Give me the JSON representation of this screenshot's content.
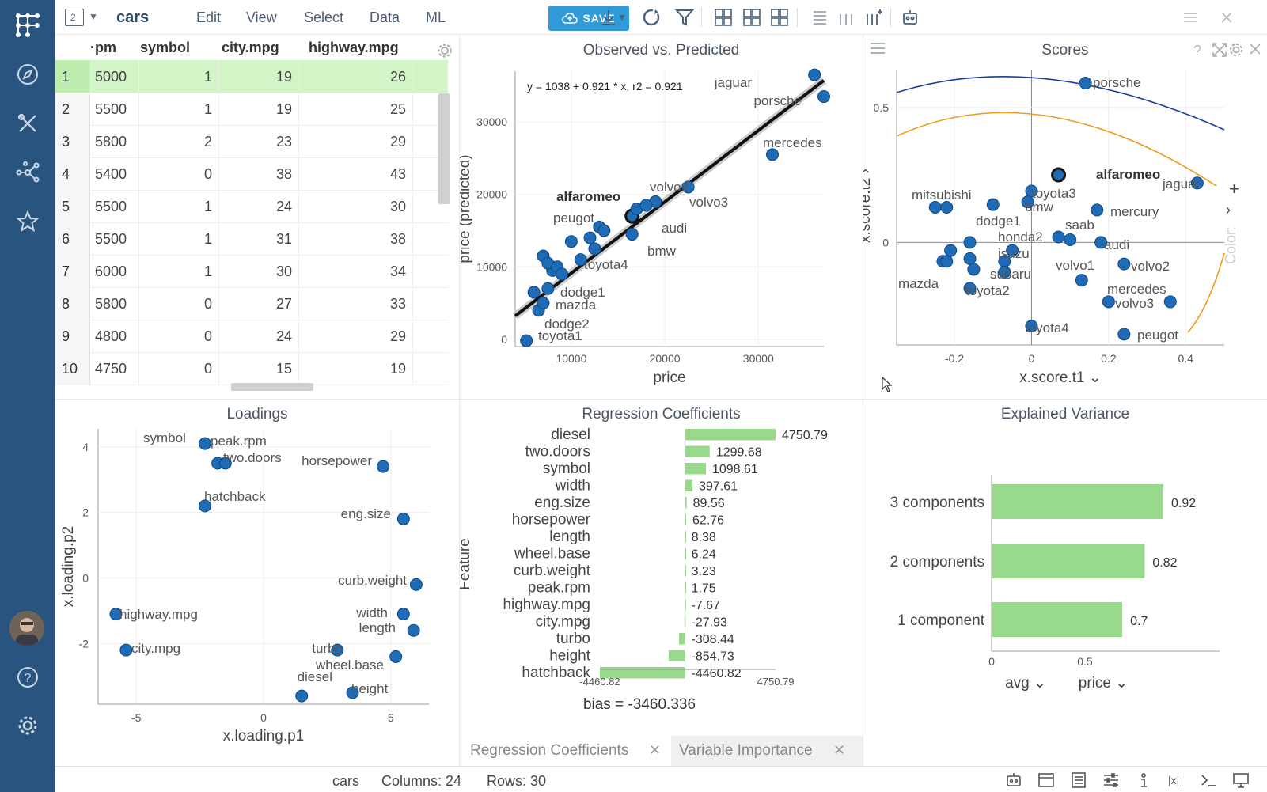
{
  "topbar": {
    "app_name": "cars",
    "view_count": "2",
    "menus": [
      "Edit",
      "View",
      "Select",
      "Data",
      "ML"
    ],
    "save_label": "SAVE"
  },
  "grid": {
    "columns": [
      "·pm",
      "symbol",
      "city.mpg",
      "highway.mpg"
    ],
    "rows": [
      {
        "n": "1",
        "pm": "5000",
        "symbol": "1",
        "city": "19",
        "hwy": "26"
      },
      {
        "n": "2",
        "pm": "5500",
        "symbol": "1",
        "city": "19",
        "hwy": "25"
      },
      {
        "n": "3",
        "pm": "5800",
        "symbol": "2",
        "city": "23",
        "hwy": "29"
      },
      {
        "n": "4",
        "pm": "5400",
        "symbol": "0",
        "city": "38",
        "hwy": "43"
      },
      {
        "n": "5",
        "pm": "5500",
        "symbol": "1",
        "city": "24",
        "hwy": "30"
      },
      {
        "n": "6",
        "pm": "5500",
        "symbol": "1",
        "city": "31",
        "hwy": "38"
      },
      {
        "n": "7",
        "pm": "6000",
        "symbol": "1",
        "city": "30",
        "hwy": "34"
      },
      {
        "n": "8",
        "pm": "5800",
        "symbol": "0",
        "city": "27",
        "hwy": "33"
      },
      {
        "n": "9",
        "pm": "4800",
        "symbol": "0",
        "city": "24",
        "hwy": "29"
      },
      {
        "n": "10",
        "pm": "4750",
        "symbol": "0",
        "city": "15",
        "hwy": "19"
      }
    ]
  },
  "obs": {
    "title": "Observed vs. Predicted",
    "equation": "y = 1038 + 0.921 * x,    r2 = 0.921",
    "xlabel": "price",
    "ylabel": "price (predicted)",
    "xticks": [
      "10000",
      "20000",
      "30000"
    ],
    "yticks": [
      "0",
      "10000",
      "20000",
      "30000"
    ],
    "labels": [
      "jaguar",
      "porsche",
      "mercedes",
      "volvo2",
      "volvo3",
      "alfaromeo",
      "peugot",
      "audi",
      "bmw",
      "toyota4",
      "dodge1",
      "mazda",
      "dodge2",
      "toyota1"
    ]
  },
  "scores": {
    "title": "Scores",
    "xlabel": "x.score.t1",
    "ylabel": "x.score.t2",
    "color_label": "Color:",
    "xticks": [
      "-0.2",
      "0",
      "0.2",
      "0.4"
    ],
    "yticks": [
      "0.5",
      "0"
    ],
    "labels": [
      "porsche",
      "alfaromeo",
      "jaguar",
      "mitsubishi",
      "toyota3",
      "bmw",
      "mercury",
      "dodge1",
      "saab",
      "honda2",
      "audi",
      "isuzu",
      "subaru",
      "volvo1",
      "volvo2",
      "mazda",
      "toyota2",
      "mercedes",
      "volvo3",
      "toyota4",
      "peugot"
    ]
  },
  "loadings": {
    "title": "Loadings",
    "xlabel": "x.loading.p1",
    "ylabel": "x.loading.p2",
    "xticks": [
      "-5",
      "0",
      "5"
    ],
    "yticks": [
      "4",
      "2",
      "0",
      "-2"
    ],
    "labels": [
      "symbol",
      "peak.rpm",
      "two.doors",
      "horsepower",
      "hatchback",
      "eng.size",
      "curb.weight",
      "highway.mpg",
      "width",
      "length",
      "city.mpg",
      "turbo",
      "wheel.base",
      "diesel",
      "height"
    ]
  },
  "coef_chart": {
    "title": "Regression Coefficients",
    "ylabel": "Feature",
    "bias": "bias = -3460.336",
    "xmin_label": "-4460.82",
    "xmax_label": "4750.79"
  },
  "variance_chart": {
    "title": "Explained Variance",
    "xticks": [
      "0",
      "0.5"
    ],
    "avg_label": "avg",
    "price_label": "price"
  },
  "bottom_tabs": [
    "Regression Coefficients",
    "Variable Importance"
  ],
  "status": {
    "table": "cars",
    "columns": "Columns: 24",
    "rows": "Rows: 30"
  },
  "chart_data": [
    {
      "type": "bar",
      "title": "Regression Coefficients",
      "ylabel": "Feature",
      "categories": [
        "diesel",
        "two.doors",
        "symbol",
        "width",
        "eng.size",
        "horsepower",
        "length",
        "wheel.base",
        "curb.weight",
        "peak.rpm",
        "highway.mpg",
        "city.mpg",
        "turbo",
        "height",
        "hatchback"
      ],
      "values": [
        4750.79,
        1299.68,
        1098.61,
        397.61,
        89.56,
        62.76,
        8.38,
        6.24,
        3.23,
        1.75,
        -7.67,
        -27.93,
        -308.44,
        -854.73,
        -4460.82
      ],
      "value_labels": [
        "4750.79",
        "1299.68",
        "1098.61",
        "397.61",
        "89.56",
        "62.76",
        "8.38",
        "6.24",
        "3.23",
        "1.75",
        "-7.67",
        "-27.93",
        "-308.44",
        "-854.73",
        "-4460.82"
      ],
      "xlim": [
        -4460.82,
        4750.79
      ]
    },
    {
      "type": "bar",
      "title": "Explained Variance",
      "categories": [
        "3 components",
        "2 components",
        "1 component"
      ],
      "values": [
        0.92,
        0.82,
        0.7
      ],
      "value_labels": [
        "0.92",
        "0.82",
        "0.7"
      ],
      "xlim": [
        0,
        1
      ]
    },
    {
      "type": "scatter",
      "title": "Observed vs. Predicted",
      "xlabel": "price",
      "ylabel": "price (predicted)",
      "xlim": [
        4000,
        37000
      ],
      "ylim": [
        -1000,
        37000
      ],
      "points": [
        [
          36000,
          36500
        ],
        [
          37000,
          33500
        ],
        [
          31500,
          25500
        ],
        [
          19000,
          19000
        ],
        [
          22500,
          21000
        ],
        [
          16500,
          17000
        ],
        [
          13000,
          15500
        ],
        [
          17000,
          18000
        ],
        [
          16500,
          14500
        ],
        [
          11000,
          11000
        ],
        [
          8000,
          9500
        ],
        [
          7500,
          7000
        ],
        [
          6500,
          4000
        ],
        [
          5200,
          -200
        ],
        [
          10000,
          13500
        ],
        [
          12000,
          14000
        ],
        [
          13500,
          15000
        ],
        [
          18000,
          18500
        ],
        [
          7000,
          11500
        ],
        [
          7500,
          10500
        ],
        [
          8500,
          10000
        ],
        [
          6000,
          6500
        ],
        [
          7000,
          5000
        ],
        [
          9000,
          9000
        ],
        [
          12500,
          12500
        ]
      ]
    },
    {
      "type": "scatter",
      "title": "Scores",
      "xlabel": "x.score.t1",
      "ylabel": "x.score.t2",
      "points": [
        [
          0.14,
          0.59
        ],
        [
          0.07,
          0.25
        ],
        [
          0.43,
          0.22
        ],
        [
          -0.25,
          0.13
        ],
        [
          -0.22,
          0.13
        ],
        [
          0,
          0.19
        ],
        [
          -0.1,
          0.14
        ],
        [
          -0.01,
          0.15
        ],
        [
          0.17,
          0.12
        ],
        [
          0.07,
          0.02
        ],
        [
          0.1,
          0.01
        ],
        [
          0.18,
          0
        ],
        [
          -0.05,
          -0.03
        ],
        [
          -0.07,
          -0.07
        ],
        [
          -0.07,
          -0.11
        ],
        [
          0.13,
          -0.14
        ],
        [
          0.24,
          -0.08
        ],
        [
          -0.23,
          -0.07
        ],
        [
          -0.22,
          -0.07
        ],
        [
          -0.16,
          -0.17
        ],
        [
          0.2,
          -0.22
        ],
        [
          0.36,
          -0.22
        ],
        [
          0,
          -0.31
        ],
        [
          0.24,
          -0.34
        ],
        [
          -0.21,
          -0.03
        ],
        [
          -0.16,
          -0.06
        ],
        [
          -0.16,
          0
        ],
        [
          -0.15,
          -0.1
        ]
      ]
    },
    {
      "type": "scatter",
      "title": "Loadings",
      "xlabel": "x.loading.p1",
      "ylabel": "x.loading.p2",
      "points": [
        [
          -2.3,
          4.1
        ],
        [
          -1.8,
          3.5
        ],
        [
          -1.5,
          3.5
        ],
        [
          4.7,
          3.4
        ],
        [
          -2.3,
          2.2
        ],
        [
          5.5,
          1.8
        ],
        [
          6.0,
          -0.2
        ],
        [
          -5.8,
          -1.1
        ],
        [
          5.5,
          -1.1
        ],
        [
          5.9,
          -1.6
        ],
        [
          -5.4,
          -2.2
        ],
        [
          2.9,
          -2.2
        ],
        [
          5.2,
          -2.4
        ],
        [
          1.5,
          -3.6
        ],
        [
          3.5,
          -3.5
        ]
      ]
    }
  ]
}
